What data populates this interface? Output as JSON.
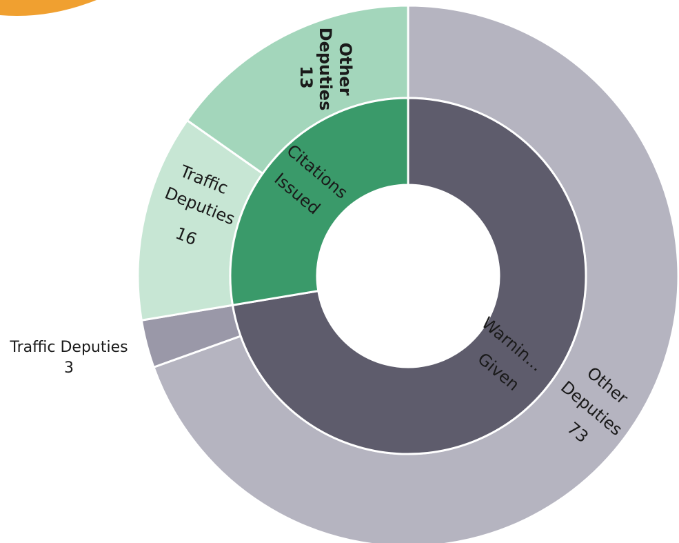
{
  "chart_data": {
    "type": "sunburst",
    "inner": [
      {
        "label": "Citations Issued",
        "value": 29,
        "color": "#3a9a6a"
      },
      {
        "label": "Warnin... Given",
        "value": 76,
        "color": "#5e5c6c"
      }
    ],
    "outer": [
      {
        "parent": "Citations Issued",
        "label": "Traffic Deputies",
        "value": 16,
        "value_text": "16",
        "color": "#a3d6bb"
      },
      {
        "parent": "Citations Issued",
        "label": "Other Deputies",
        "value": 13,
        "value_text": "13",
        "color": "#c7e6d4"
      },
      {
        "parent": "Warnin... Given",
        "label": "Traffic Deputies",
        "value": 3,
        "value_text": "3",
        "color": "#9a98a8"
      },
      {
        "parent": "Warnin... Given",
        "label": "Other Deputies",
        "value": 73,
        "value_text": "73",
        "color": "#b5b4c0"
      }
    ],
    "accent_color": "#f0a030"
  }
}
